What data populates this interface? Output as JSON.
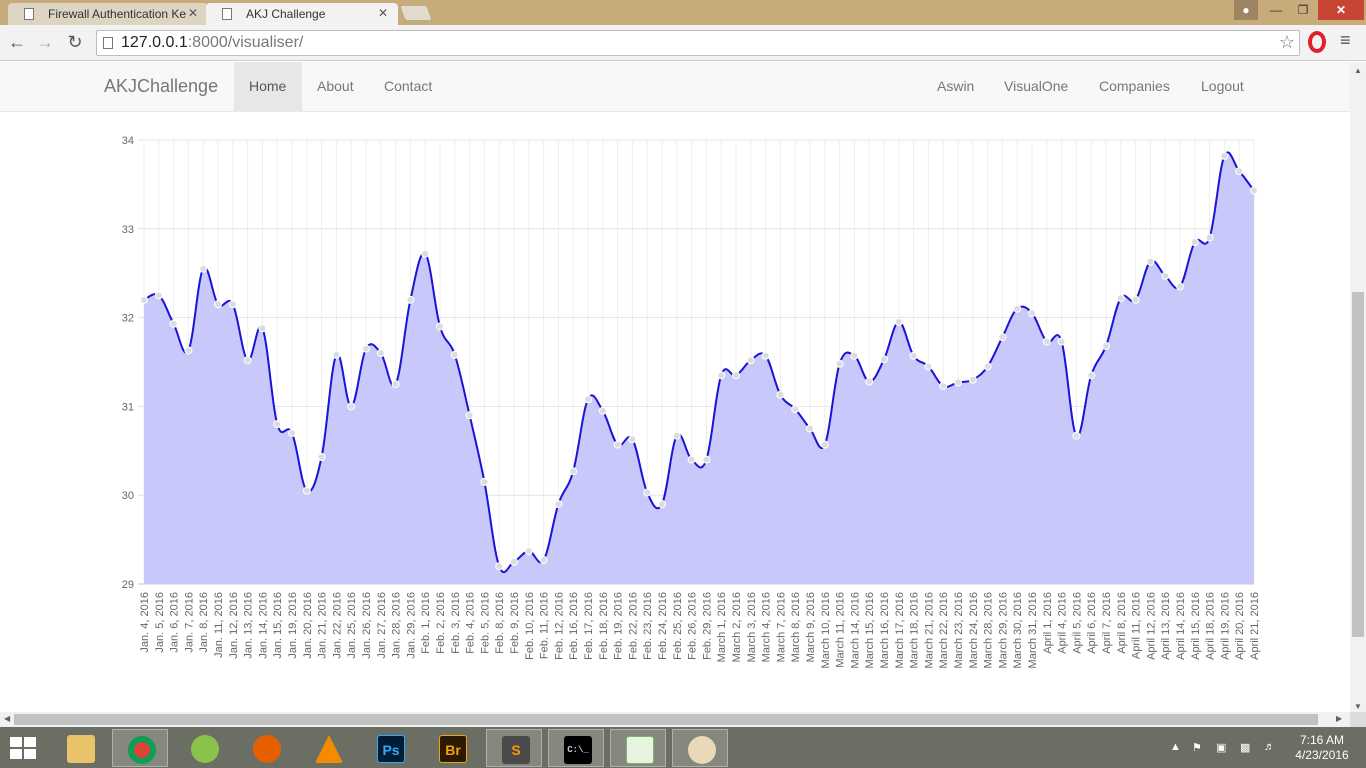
{
  "browser": {
    "tabs": [
      {
        "title": "Firewall Authentication Ke",
        "close": "✕"
      },
      {
        "title": "AKJ Challenge",
        "close": "✕"
      }
    ],
    "url_host": "127.0.0.1",
    "url_rest": ":8000/visualiser/"
  },
  "navbar": {
    "brand": "AKJChallenge",
    "left": [
      "Home",
      "About",
      "Contact"
    ],
    "right": [
      "Aswin",
      "VisualOne",
      "Companies",
      "Logout"
    ],
    "active": "Home"
  },
  "chart_data": {
    "type": "area",
    "title": "",
    "xlabel": "",
    "ylabel": "",
    "ylim": [
      29,
      34
    ],
    "yticks": [
      29,
      30,
      31,
      32,
      33,
      34
    ],
    "grid": true,
    "line_color": "#1a14d6",
    "fill_color": "#c8c8fb",
    "point_color": "#dcdcdc",
    "categories": [
      "Jan. 4, 2016",
      "Jan. 5, 2016",
      "Jan. 6, 2016",
      "Jan. 7, 2016",
      "Jan. 8, 2016",
      "Jan. 11, 2016",
      "Jan. 12, 2016",
      "Jan. 13, 2016",
      "Jan. 14, 2016",
      "Jan. 15, 2016",
      "Jan. 19, 2016",
      "Jan. 20, 2016",
      "Jan. 21, 2016",
      "Jan. 22, 2016",
      "Jan. 25, 2016",
      "Jan. 26, 2016",
      "Jan. 27, 2016",
      "Jan. 28, 2016",
      "Jan. 29, 2016",
      "Feb. 1, 2016",
      "Feb. 2, 2016",
      "Feb. 3, 2016",
      "Feb. 4, 2016",
      "Feb. 5, 2016",
      "Feb. 8, 2016",
      "Feb. 9, 2016",
      "Feb. 10, 2016",
      "Feb. 11, 2016",
      "Feb. 12, 2016",
      "Feb. 16, 2016",
      "Feb. 17, 2016",
      "Feb. 18, 2016",
      "Feb. 19, 2016",
      "Feb. 22, 2016",
      "Feb. 23, 2016",
      "Feb. 24, 2016",
      "Feb. 25, 2016",
      "Feb. 26, 2016",
      "Feb. 29, 2016",
      "March 1, 2016",
      "March 2, 2016",
      "March 3, 2016",
      "March 4, 2016",
      "March 7, 2016",
      "March 8, 2016",
      "March 9, 2016",
      "March 10, 2016",
      "March 11, 2016",
      "March 14, 2016",
      "March 15, 2016",
      "March 16, 2016",
      "March 17, 2016",
      "March 18, 2016",
      "March 21, 2016",
      "March 22, 2016",
      "March 23, 2016",
      "March 24, 2016",
      "March 28, 2016",
      "March 29, 2016",
      "March 30, 2016",
      "March 31, 2016",
      "April 1, 2016",
      "April 4, 2016",
      "April 5, 2016",
      "April 6, 2016",
      "April 7, 2016",
      "April 8, 2016",
      "April 11, 2016",
      "April 12, 2016",
      "April 13, 2016",
      "April 14, 2016",
      "April 15, 2016",
      "April 18, 2016",
      "April 19, 2016",
      "April 20, 2016",
      "April 21, 2016"
    ],
    "values": [
      32.2,
      32.25,
      31.93,
      31.63,
      32.55,
      32.15,
      32.15,
      31.52,
      31.88,
      30.8,
      30.7,
      30.05,
      30.43,
      31.58,
      31.0,
      31.65,
      31.6,
      31.25,
      32.2,
      32.72,
      31.9,
      31.58,
      30.9,
      30.15,
      29.2,
      29.25,
      29.37,
      29.27,
      29.9,
      30.27,
      31.08,
      30.95,
      30.57,
      30.63,
      30.03,
      29.9,
      30.67,
      30.4,
      30.4,
      31.35,
      31.35,
      31.52,
      31.57,
      31.13,
      30.97,
      30.75,
      30.57,
      31.48,
      31.57,
      31.28,
      31.53,
      31.95,
      31.57,
      31.45,
      31.23,
      31.27,
      31.3,
      31.45,
      31.78,
      32.1,
      32.05,
      31.73,
      31.73,
      30.67,
      31.35,
      31.68,
      32.22,
      32.2,
      32.63,
      32.47,
      32.35,
      32.85,
      32.9,
      33.82,
      33.65,
      33.43
    ]
  },
  "taskbar": {
    "time": "7:16 AM",
    "date": "4/23/2016",
    "apps": [
      {
        "icon": "file-explorer-icon",
        "label": ""
      },
      {
        "icon": "chrome-icon",
        "label": ""
      },
      {
        "icon": "android-studio-icon",
        "label": ""
      },
      {
        "icon": "firefox-icon",
        "label": ""
      },
      {
        "icon": "vlc-icon",
        "label": ""
      },
      {
        "icon": "photoshop-icon",
        "label": "Ps"
      },
      {
        "icon": "bridge-icon",
        "label": "Br"
      },
      {
        "icon": "sublime-text-icon",
        "label": "S"
      },
      {
        "icon": "command-prompt-icon",
        "label": "C:\\_"
      },
      {
        "icon": "notepad-icon",
        "label": ""
      },
      {
        "icon": "paint-icon",
        "label": ""
      }
    ]
  }
}
